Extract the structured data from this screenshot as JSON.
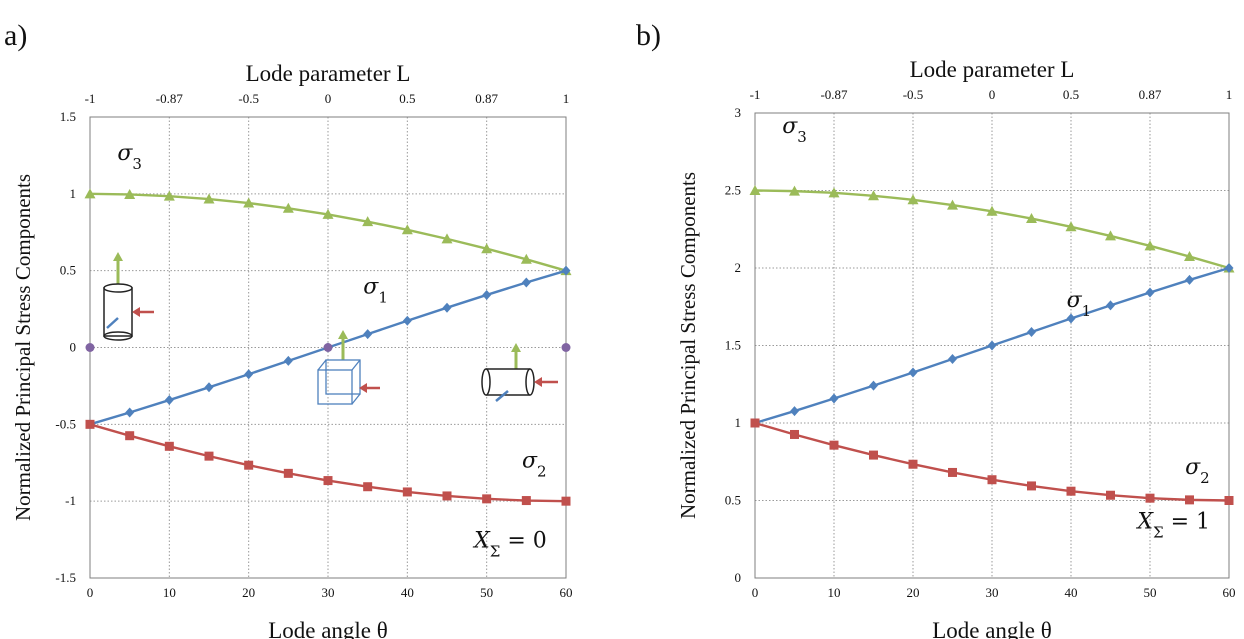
{
  "chart_data": [
    {
      "panel_label": "a)",
      "type": "line",
      "xlabel": "Lode angle θ",
      "x2label": "Lode parameter L",
      "ylabel": "Normalized Principal Stress Components",
      "xlim": [
        0,
        60
      ],
      "ylim": [
        -1.5,
        1.5
      ],
      "x_ticks": [
        "0",
        "10",
        "20",
        "30",
        "40",
        "50",
        "60"
      ],
      "y_ticks": [
        "-1.5",
        "-1",
        "-0.5",
        "0",
        "0.5",
        "1",
        "1.5"
      ],
      "top_ticks": [
        "-1",
        "-0.87",
        "-0.5",
        "0",
        "0.5",
        "0.87",
        "1"
      ],
      "grid": true,
      "annotation": "X_Σ = 0",
      "x": [
        0,
        5,
        10,
        15,
        20,
        25,
        30,
        35,
        40,
        45,
        50,
        55,
        60
      ],
      "series": [
        {
          "name": "σ3",
          "color": "#9bbb59",
          "marker": "triangle",
          "values": [
            1.0,
            0.996,
            0.985,
            0.966,
            0.94,
            0.906,
            0.866,
            0.819,
            0.766,
            0.707,
            0.643,
            0.574,
            0.5
          ]
        },
        {
          "name": "σ1",
          "color": "#4f81bd",
          "marker": "diamond",
          "values": [
            -0.5,
            -0.423,
            -0.342,
            -0.259,
            -0.174,
            -0.087,
            0.0,
            0.087,
            0.174,
            0.259,
            0.342,
            0.423,
            0.5
          ]
        },
        {
          "name": "σ2",
          "color": "#c0504d",
          "marker": "square",
          "values": [
            -0.5,
            -0.574,
            -0.643,
            -0.707,
            -0.766,
            -0.819,
            -0.866,
            -0.906,
            -0.94,
            -0.966,
            -0.985,
            -0.996,
            -1.0
          ]
        }
      ],
      "purple_points": [
        [
          0,
          0
        ],
        [
          30,
          0
        ],
        [
          60,
          0
        ]
      ],
      "purple_color": "#8064a2"
    },
    {
      "panel_label": "b)",
      "type": "line",
      "xlabel": "Lode angle θ",
      "x2label": "Lode parameter L",
      "ylabel": "Normalized Principal Stress Components",
      "xlim": [
        0,
        60
      ],
      "ylim": [
        0,
        3
      ],
      "x_ticks": [
        "0",
        "10",
        "20",
        "30",
        "40",
        "50",
        "60"
      ],
      "y_ticks": [
        "0",
        "0.5",
        "1",
        "1.5",
        "2",
        "2.5",
        "3"
      ],
      "top_ticks": [
        "-1",
        "-0.87",
        "-0.5",
        "0",
        "0.5",
        "0.87",
        "1"
      ],
      "grid": true,
      "annotation": "X_Σ = 1",
      "x": [
        0,
        5,
        10,
        15,
        20,
        25,
        30,
        35,
        40,
        45,
        50,
        55,
        60
      ],
      "series": [
        {
          "name": "σ3",
          "color": "#9bbb59",
          "marker": "triangle",
          "values": [
            2.5,
            2.496,
            2.485,
            2.466,
            2.44,
            2.406,
            2.366,
            2.319,
            2.266,
            2.207,
            2.143,
            2.074,
            2.0
          ]
        },
        {
          "name": "σ1",
          "color": "#4f81bd",
          "marker": "diamond",
          "values": [
            1.0,
            1.077,
            1.158,
            1.241,
            1.326,
            1.413,
            1.5,
            1.587,
            1.674,
            1.759,
            1.842,
            1.923,
            2.0
          ]
        },
        {
          "name": "σ2",
          "color": "#c0504d",
          "marker": "square",
          "values": [
            1.0,
            0.926,
            0.857,
            0.793,
            0.734,
            0.681,
            0.634,
            0.594,
            0.56,
            0.534,
            0.515,
            0.504,
            0.5
          ]
        }
      ]
    }
  ]
}
